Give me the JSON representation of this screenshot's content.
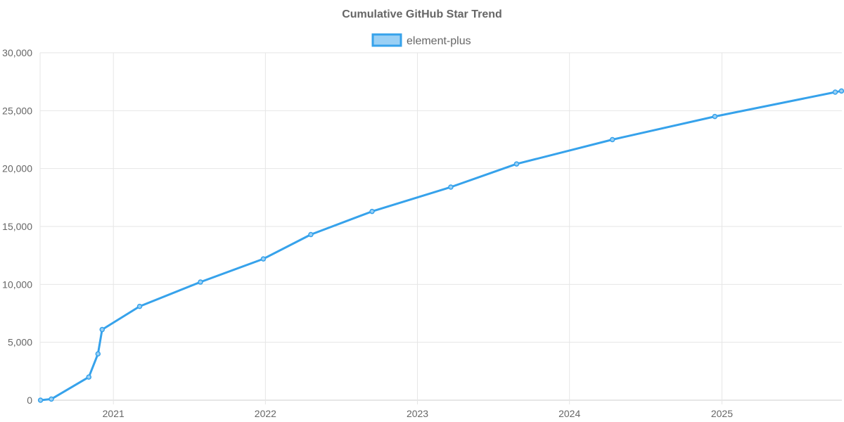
{
  "chart_data": {
    "type": "line",
    "title": "Cumulative GitHub Star Trend",
    "xlabel": "",
    "ylabel": "",
    "x_ticks": [
      "2021",
      "2022",
      "2023",
      "2024",
      "2025"
    ],
    "y_ticks": [
      "0",
      "5,000",
      "10,000",
      "15,000",
      "20,000",
      "25,000",
      "30,000"
    ],
    "ylim": [
      0,
      30000
    ],
    "xlim": [
      "2020-07-09",
      "2025-10-16"
    ],
    "grid": true,
    "legend_position": "top-center",
    "series": [
      {
        "name": "element-plus",
        "color": "#36a2eb",
        "fill_color": "#9ad0f5",
        "points": [
          {
            "x": "2020-07-10",
            "y": 0
          },
          {
            "x": "2020-08-05",
            "y": 100
          },
          {
            "x": "2020-11-03",
            "y": 2000
          },
          {
            "x": "2020-11-25",
            "y": 4000
          },
          {
            "x": "2020-12-05",
            "y": 6100
          },
          {
            "x": "2021-03-05",
            "y": 8100
          },
          {
            "x": "2021-07-29",
            "y": 10200
          },
          {
            "x": "2021-12-27",
            "y": 12200
          },
          {
            "x": "2022-04-20",
            "y": 14300
          },
          {
            "x": "2022-09-14",
            "y": 16300
          },
          {
            "x": "2023-03-22",
            "y": 18400
          },
          {
            "x": "2023-08-27",
            "y": 20400
          },
          {
            "x": "2024-04-13",
            "y": 22500
          },
          {
            "x": "2024-12-15",
            "y": 24500
          },
          {
            "x": "2025-09-30",
            "y": 26600
          },
          {
            "x": "2025-10-15",
            "y": 26700
          }
        ]
      }
    ]
  }
}
